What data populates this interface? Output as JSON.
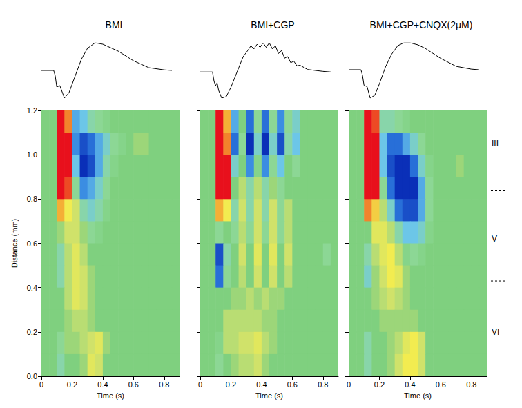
{
  "chart_data": [
    {
      "type": "heatmap",
      "title": "BMI",
      "xlabel": "Time (s)",
      "ylabel": "Distance (mm)",
      "xlim": [
        0,
        0.9
      ],
      "xticks": [
        0,
        0.2,
        0.4,
        0.6,
        0.8
      ],
      "ylim": [
        0,
        1.2
      ],
      "yticks": [
        {
          "value": 0,
          "label": "0.0"
        },
        0.2,
        0.4,
        0.6,
        0.8,
        {
          "value": 1,
          "label": "1.0"
        },
        1.2
      ],
      "grid": false,
      "zlim": [
        -1,
        1
      ],
      "x": [
        0.025,
        0.075,
        0.125,
        0.175,
        0.225,
        0.275,
        0.325,
        0.375,
        0.425,
        0.475,
        0.525,
        0.575,
        0.625,
        0.675,
        0.725,
        0.775,
        0.825,
        0.875
      ],
      "y": [
        1.15,
        1.05,
        0.95,
        0.85,
        0.75,
        0.65,
        0.55,
        0.45,
        0.35,
        0.25,
        0.15,
        0.05
      ],
      "cells": [
        [
          0,
          0,
          1,
          0.8,
          -0.6,
          -0.5,
          -0.3,
          -0.2,
          -0.1,
          0,
          0,
          0,
          0,
          0,
          0,
          0,
          0,
          0
        ],
        [
          0,
          0,
          1,
          1,
          -0.7,
          -0.9,
          -0.8,
          -0.6,
          -0.4,
          -0.2,
          -0.1,
          0,
          0.1,
          0.1,
          0,
          0,
          0,
          0
        ],
        [
          0,
          0,
          1,
          1,
          -0.5,
          -1,
          -0.9,
          -0.6,
          -0.3,
          -0.1,
          0,
          0,
          0,
          0,
          0,
          0,
          0,
          0
        ],
        [
          0,
          0,
          1,
          0.9,
          -0.2,
          -0.7,
          -0.6,
          -0.4,
          -0.2,
          0,
          0,
          0,
          0,
          0,
          0,
          0,
          0,
          0
        ],
        [
          0,
          0,
          0.7,
          0.5,
          0.3,
          -0.3,
          -0.4,
          -0.3,
          -0.1,
          0,
          0,
          0,
          0,
          0,
          0,
          0,
          0,
          0
        ],
        [
          0,
          0,
          0.1,
          0.3,
          0.3,
          0.1,
          -0.2,
          -0.1,
          0,
          0,
          0,
          0,
          0,
          0,
          0,
          0,
          0,
          0
        ],
        [
          0,
          0,
          -0.3,
          0.2,
          0.4,
          0.2,
          0,
          0,
          0,
          0,
          0,
          0,
          0,
          0,
          0,
          0,
          0,
          0
        ],
        [
          0,
          0,
          -0.3,
          0.2,
          0.4,
          0.3,
          0.1,
          0,
          0,
          0,
          0,
          0,
          0,
          0,
          0,
          0,
          0,
          0
        ],
        [
          0,
          0,
          0,
          0.2,
          0.4,
          0.3,
          0.1,
          0,
          0,
          0,
          0,
          0,
          0,
          0,
          0,
          0,
          0,
          0
        ],
        [
          0,
          0,
          0,
          0.1,
          0.2,
          0.2,
          0.1,
          0,
          0,
          0,
          0,
          0,
          0,
          0,
          0,
          0,
          0,
          0
        ],
        [
          0,
          0,
          -0.2,
          0.1,
          0.1,
          0.2,
          0.3,
          0.4,
          0.1,
          0,
          0,
          0,
          0,
          0,
          0,
          0,
          0,
          0
        ],
        [
          0,
          0,
          -0.3,
          0,
          0,
          0.1,
          0.4,
          0.3,
          0,
          0,
          0,
          0,
          0,
          0,
          0,
          0,
          0,
          0
        ]
      ],
      "trace": {
        "x": [
          0,
          0.08,
          0.09,
          0.1,
          0.12,
          0.15,
          0.18,
          0.22,
          0.26,
          0.3,
          0.35,
          0.4,
          0.5,
          0.6,
          0.7,
          0.8,
          0.85
        ],
        "values": [
          0,
          0,
          -0.2,
          -0.6,
          -0.55,
          -1,
          -0.8,
          -0.2,
          0.4,
          0.8,
          1,
          0.95,
          0.7,
          0.35,
          0.1,
          0.02,
          0
        ]
      }
    },
    {
      "type": "heatmap",
      "title": "BMI+CGP",
      "xlabel": "Time (s)",
      "tick_labels": "x",
      "xlim": [
        0,
        0.9
      ],
      "xticks": [
        0,
        0.2,
        0.4,
        0.6,
        0.8
      ],
      "ylim": [
        0,
        1.2
      ],
      "yticks": [
        {
          "value": 0,
          "label": "0.0"
        },
        0.2,
        0.4,
        0.6,
        0.8,
        {
          "value": 1,
          "label": "1.0"
        },
        1.2
      ],
      "grid": false,
      "zlim": [
        -1,
        1
      ],
      "x": [
        0.025,
        0.075,
        0.125,
        0.175,
        0.225,
        0.275,
        0.325,
        0.375,
        0.425,
        0.475,
        0.525,
        0.575,
        0.625,
        0.675,
        0.725,
        0.775,
        0.825,
        0.875
      ],
      "y": [
        1.15,
        1.05,
        0.95,
        0.85,
        0.75,
        0.65,
        0.55,
        0.45,
        0.35,
        0.25,
        0.15,
        0.05
      ],
      "cells": [
        [
          0,
          0,
          1,
          0.7,
          -0.6,
          0,
          -0.8,
          -0.2,
          -0.8,
          -0.2,
          -0.7,
          -0.2,
          -0.4,
          0,
          0,
          0,
          0,
          0
        ],
        [
          0,
          0,
          1,
          0.8,
          -0.8,
          -0.2,
          -1,
          -0.4,
          -1,
          -0.4,
          -0.9,
          -0.3,
          -0.5,
          0,
          0,
          0,
          0,
          0
        ],
        [
          0,
          0,
          1,
          1,
          -0.4,
          0,
          -0.7,
          -0.1,
          -0.7,
          -0.2,
          -0.5,
          0,
          -0.2,
          0,
          0,
          0,
          0,
          0
        ],
        [
          0,
          0,
          1,
          1,
          0,
          0.2,
          -0.3,
          0.2,
          -0.3,
          0.1,
          -0.2,
          0,
          0,
          0,
          0,
          0,
          0,
          0
        ],
        [
          0,
          0,
          0.7,
          0.5,
          -0.3,
          0.3,
          -0.3,
          0.3,
          -0.3,
          0.3,
          -0.2,
          0.2,
          0,
          0,
          0,
          0,
          0,
          0
        ],
        [
          0,
          0,
          -0.2,
          0,
          -0.2,
          0.2,
          -0.2,
          0.3,
          -0.2,
          0.3,
          -0.2,
          0.2,
          0,
          0,
          0,
          0,
          0,
          0
        ],
        [
          0,
          0,
          -0.9,
          -0.3,
          0,
          0.3,
          0,
          0.4,
          0,
          0.4,
          0,
          0.3,
          0,
          0,
          0,
          0,
          -0.2,
          0
        ],
        [
          0,
          0,
          -0.8,
          -0.2,
          0,
          0.2,
          0,
          0.3,
          0,
          0.3,
          0,
          0.2,
          0,
          0,
          0,
          0,
          0,
          0
        ],
        [
          0,
          0,
          0,
          0,
          0.1,
          0.1,
          0.2,
          0.1,
          0.2,
          0.1,
          0.1,
          0,
          0,
          0,
          0,
          0,
          0,
          0
        ],
        [
          0,
          0,
          0,
          0.2,
          0.2,
          0.2,
          0.2,
          0.2,
          0.1,
          0.1,
          0,
          0,
          0,
          0,
          0,
          0,
          0,
          0
        ],
        [
          0,
          0,
          -0.1,
          0.2,
          0.2,
          0.3,
          0.3,
          0.4,
          0.2,
          0.1,
          0,
          0,
          0,
          0,
          0,
          0,
          0,
          0
        ],
        [
          0,
          0,
          -0.2,
          0,
          0.1,
          0.2,
          0.2,
          0.3,
          0.1,
          0,
          0,
          0,
          0,
          0,
          0,
          0,
          0,
          0
        ]
      ],
      "trace": {
        "x": [
          0,
          0.08,
          0.09,
          0.1,
          0.11,
          0.12,
          0.14,
          0.17,
          0.2,
          0.24,
          0.28,
          0.31,
          0.33,
          0.35,
          0.37,
          0.39,
          0.41,
          0.43,
          0.45,
          0.47,
          0.49,
          0.51,
          0.53,
          0.55,
          0.57,
          0.59,
          0.61,
          0.63,
          0.65,
          0.7,
          0.8,
          0.85
        ],
        "values": [
          0,
          0,
          -0.3,
          -0.45,
          -0.35,
          -0.6,
          -0.85,
          -0.8,
          -0.5,
          0,
          0.5,
          0.7,
          0.85,
          0.75,
          0.9,
          0.8,
          0.95,
          0.8,
          0.95,
          0.75,
          0.85,
          0.6,
          0.7,
          0.45,
          0.5,
          0.3,
          0.35,
          0.2,
          0.22,
          0.08,
          0.02,
          0
        ]
      }
    },
    {
      "type": "heatmap",
      "title": "BMI+CGP+CNQX(2μM)",
      "xlabel": "Time (s)",
      "tick_labels": "x",
      "xlim": [
        0,
        0.9
      ],
      "xticks": [
        0,
        0.2,
        0.4,
        0.6,
        0.8
      ],
      "ylim": [
        0,
        1.2
      ],
      "yticks": [
        {
          "value": 0,
          "label": "0.0"
        },
        0.2,
        0.4,
        0.6,
        0.8,
        {
          "value": 1,
          "label": "1.0"
        },
        1.2
      ],
      "grid": false,
      "zlim": [
        -1,
        1
      ],
      "x": [
        0.025,
        0.075,
        0.125,
        0.175,
        0.225,
        0.275,
        0.325,
        0.375,
        0.425,
        0.475,
        0.525,
        0.575,
        0.625,
        0.675,
        0.725,
        0.775,
        0.825,
        0.875
      ],
      "y": [
        1.15,
        1.05,
        0.95,
        0.85,
        0.75,
        0.65,
        0.55,
        0.45,
        0.35,
        0.25,
        0.15,
        0.05
      ],
      "cells": [
        [
          0,
          0,
          1,
          0.9,
          -0.3,
          -0.3,
          -0.2,
          -0.1,
          0,
          0,
          0,
          0,
          0,
          0,
          0,
          0,
          0,
          0
        ],
        [
          0,
          0,
          1,
          1,
          -0.5,
          -0.8,
          -0.8,
          -0.6,
          -0.4,
          -0.2,
          0,
          0,
          0,
          0,
          0,
          0,
          0,
          0
        ],
        [
          0,
          0,
          1,
          1,
          -0.5,
          -0.9,
          -1,
          -1,
          -0.8,
          -0.4,
          -0.1,
          0,
          0,
          0,
          0.1,
          0,
          0,
          0
        ],
        [
          0,
          0,
          1,
          1,
          -0.2,
          -0.8,
          -1,
          -1,
          -1,
          -0.6,
          -0.2,
          0,
          0,
          0,
          0,
          0,
          0,
          0
        ],
        [
          0,
          0,
          0.8,
          0.6,
          0.2,
          -0.4,
          -0.8,
          -0.9,
          -0.9,
          -0.6,
          -0.2,
          0,
          0,
          0,
          0,
          0,
          0,
          0
        ],
        [
          0,
          0,
          0,
          0.4,
          0.4,
          0.2,
          -0.3,
          -0.5,
          -0.5,
          -0.4,
          -0.1,
          0,
          0,
          0,
          0,
          0,
          0,
          0
        ],
        [
          0,
          0,
          -0.3,
          0.2,
          0.4,
          0.5,
          0.2,
          -0.1,
          -0.2,
          -0.1,
          0,
          0,
          0,
          0,
          0,
          0,
          0,
          0
        ],
        [
          0,
          0,
          -0.4,
          0.1,
          0.3,
          0.5,
          0.4,
          0.1,
          0,
          0,
          0,
          0,
          0,
          0,
          0,
          0,
          0,
          0
        ],
        [
          0,
          0,
          0,
          0.1,
          0.2,
          0.3,
          0.2,
          0.1,
          0,
          0,
          0,
          0,
          0,
          0,
          0,
          0,
          0,
          0
        ],
        [
          0,
          0,
          0,
          0,
          0.1,
          0.1,
          0.1,
          0.1,
          0.1,
          0,
          0,
          0,
          0,
          0,
          0,
          0,
          0,
          0
        ],
        [
          0,
          0,
          -0.3,
          0,
          0,
          0.1,
          0.2,
          0.4,
          0.5,
          0.3,
          0,
          0,
          0,
          0,
          0,
          0,
          0,
          0
        ],
        [
          0,
          0,
          -0.3,
          0,
          0,
          0.1,
          0.3,
          0.5,
          0.5,
          0.3,
          0,
          0,
          0,
          0,
          0,
          0,
          0,
          0
        ]
      ],
      "layers": [
        {
          "label": "III",
          "y": 1.05
        },
        {
          "label": "V",
          "y": 0.62
        },
        {
          "label": "VI",
          "y": 0.2
        }
      ],
      "boundaries": [
        0.84,
        0.43
      ],
      "trace": {
        "x": [
          0,
          0.08,
          0.09,
          0.1,
          0.12,
          0.14,
          0.17,
          0.2,
          0.24,
          0.28,
          0.32,
          0.36,
          0.4,
          0.45,
          0.5,
          0.6,
          0.7,
          0.8,
          0.85
        ],
        "values": [
          0,
          0,
          -0.2,
          -0.55,
          -0.6,
          -1,
          -0.9,
          -0.5,
          0.1,
          0.55,
          0.85,
          0.95,
          0.95,
          0.88,
          0.75,
          0.4,
          0.12,
          0.02,
          0
        ]
      }
    }
  ]
}
